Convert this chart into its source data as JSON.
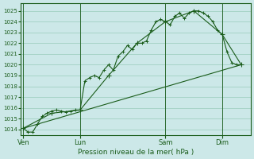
{
  "title": "Pression niveau de la mer( hPa )",
  "bg_color": "#cce8e8",
  "plot_bg_color": "#cce8e8",
  "grid_color": "#99ccbb",
  "line_color": "#1a5c1a",
  "ylim": [
    1013.5,
    1025.7
  ],
  "yticks": [
    1014,
    1015,
    1016,
    1017,
    1018,
    1019,
    1020,
    1021,
    1022,
    1023,
    1024,
    1025
  ],
  "xtick_labels": [
    "Ven",
    "Lun",
    "Sam",
    "Dim"
  ],
  "xtick_positions": [
    0,
    12,
    30,
    42
  ],
  "vlines": [
    0,
    12,
    30,
    42
  ],
  "xlim": [
    -0.5,
    48
  ],
  "series1_x": [
    0,
    1,
    2,
    3,
    4,
    5,
    6,
    7,
    8,
    9,
    10,
    11,
    12,
    13,
    14,
    15,
    16,
    17,
    18,
    19,
    20,
    21,
    22,
    23,
    24,
    25,
    26,
    27,
    28,
    29,
    30,
    31,
    32,
    33,
    34,
    35,
    36,
    37,
    38,
    39,
    40,
    41,
    42,
    43,
    44,
    45,
    46
  ],
  "series1_y": [
    1014.1,
    1013.75,
    1013.75,
    1014.5,
    1015.2,
    1015.5,
    1015.7,
    1015.8,
    1015.7,
    1015.6,
    1015.7,
    1015.8,
    1015.8,
    1018.5,
    1018.8,
    1019.0,
    1018.8,
    1019.5,
    1020.0,
    1019.5,
    1020.8,
    1021.2,
    1021.8,
    1021.4,
    1022.0,
    1022.0,
    1022.2,
    1023.2,
    1024.0,
    1024.2,
    1024.0,
    1023.7,
    1024.5,
    1024.8,
    1024.3,
    1024.8,
    1025.0,
    1025.0,
    1024.8,
    1024.5,
    1024.0,
    1023.2,
    1022.8,
    1021.2,
    1020.2,
    1020.0,
    1020.0
  ],
  "series2_x": [
    0,
    6,
    12,
    18,
    24,
    30,
    36,
    42,
    46
  ],
  "series2_y": [
    1014.1,
    1015.5,
    1015.8,
    1019.0,
    1022.0,
    1024.0,
    1025.0,
    1022.8,
    1020.0
  ],
  "series3_x": [
    0,
    46
  ],
  "series3_y": [
    1014.1,
    1020.0
  ]
}
